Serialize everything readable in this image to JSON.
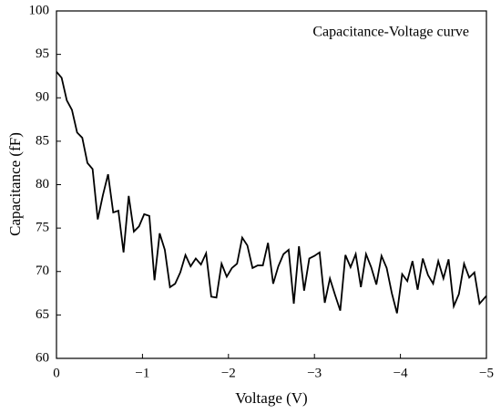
{
  "chart_data": {
    "type": "line",
    "annotation": "Capacitance-Voltage curve",
    "xlabel": "Voltage (V)",
    "ylabel": "Capacitance (fF)",
    "color": "#000000",
    "x": [
      0,
      -0.06,
      -0.12,
      -0.18,
      -0.24,
      -0.3,
      -0.36,
      -0.42,
      -0.48,
      -0.54,
      -0.6,
      -0.66,
      -0.72,
      -0.78,
      -0.84,
      -0.9,
      -0.96,
      -1.02,
      -1.08,
      -1.14,
      -1.2,
      -1.26,
      -1.32,
      -1.38,
      -1.44,
      -1.5,
      -1.56,
      -1.62,
      -1.68,
      -1.74,
      -1.8,
      -1.86,
      -1.92,
      -1.98,
      -2.04,
      -2.1,
      -2.16,
      -2.22,
      -2.28,
      -2.34,
      -2.4,
      -2.46,
      -2.52,
      -2.58,
      -2.64,
      -2.7,
      -2.76,
      -2.82,
      -2.88,
      -2.94,
      -3,
      -3.06,
      -3.12,
      -3.18,
      -3.24,
      -3.3,
      -3.36,
      -3.42,
      -3.48,
      -3.54,
      -3.6,
      -3.66,
      -3.72,
      -3.78,
      -3.84,
      -3.9,
      -3.96,
      -4.02,
      -4.08,
      -4.14,
      -4.2,
      -4.26,
      -4.32,
      -4.38,
      -4.44,
      -4.5,
      -4.56,
      -4.62,
      -4.68,
      -4.74,
      -4.8,
      -4.86,
      -4.92,
      -5
    ],
    "values": [
      93,
      92.3,
      89.7,
      88.6,
      86,
      85.4,
      82.5,
      81.8,
      76,
      78.8,
      81.2,
      76.8,
      77,
      72.2,
      78.7,
      74.6,
      75.2,
      76.6,
      76.4,
      69,
      74.4,
      72.5,
      68.2,
      68.6,
      69.9,
      71.9,
      70.6,
      71.5,
      70.8,
      72.1,
      67.1,
      67,
      70.9,
      69.4,
      70.4,
      70.9,
      73.9,
      73,
      70.4,
      70.7,
      70.7,
      73.3,
      68.6,
      70.6,
      72,
      72.5,
      66.3,
      72.9,
      67.8,
      71.5,
      71.8,
      72.2,
      66.4,
      69.2,
      67.3,
      65.5,
      71.9,
      70.5,
      72,
      68.2,
      72,
      70.5,
      68.5,
      71.8,
      70.4,
      67.5,
      65.2,
      69.7,
      68.9,
      71.2,
      67.9,
      71.5,
      69.6,
      68.6,
      71.2,
      69.2,
      71.4,
      66,
      67.4,
      70.9,
      69.3,
      69.9,
      66.3,
      67.2
    ],
    "xlim": [
      0,
      -5
    ],
    "xticks": [
      0,
      {
        "value": -1,
        "label": "−1"
      },
      {
        "value": -2,
        "label": "−2"
      },
      {
        "value": -3,
        "label": "−3"
      },
      {
        "value": -4,
        "label": "−4"
      },
      {
        "value": -5,
        "label": "−5"
      }
    ],
    "ylim": [
      60,
      100
    ],
    "yticks": [
      60,
      65,
      70,
      75,
      80,
      85,
      90,
      95,
      100
    ]
  }
}
